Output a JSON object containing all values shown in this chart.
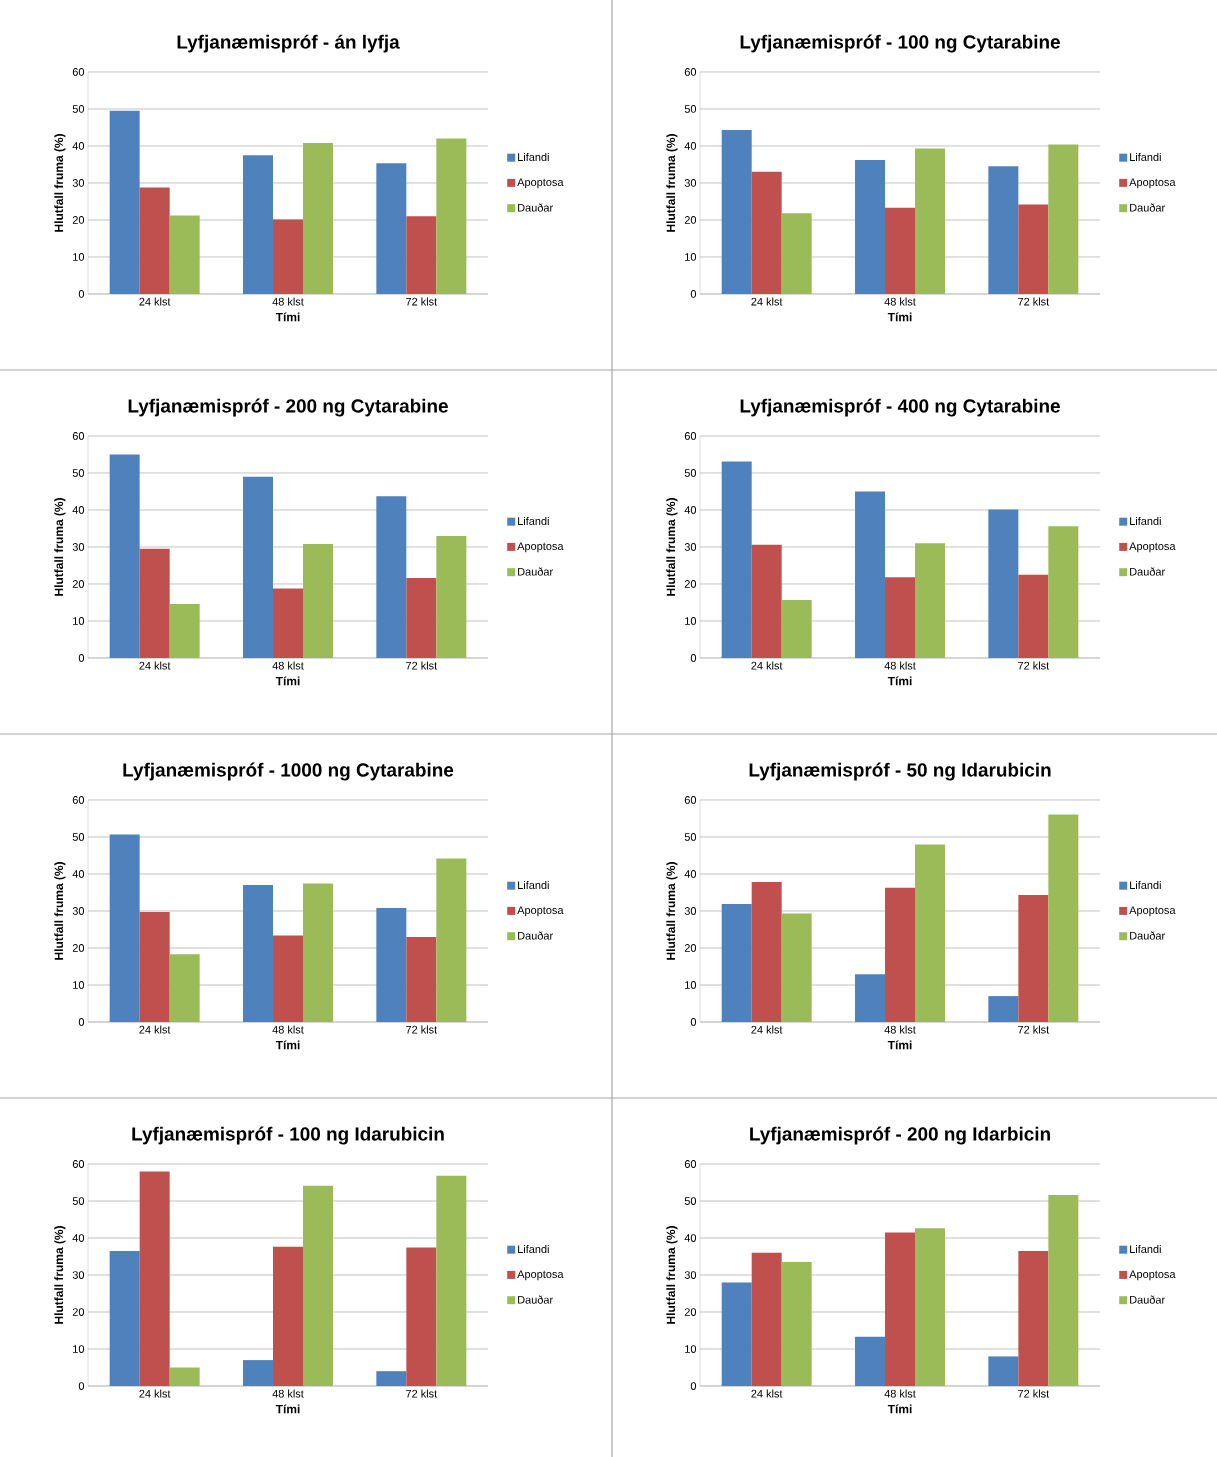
{
  "chart_data": [
    {
      "type": "bar",
      "title": "Lyfjanæmispróf - án lyfja",
      "xlabel": "Tími",
      "ylabel": "Hlutfall fruma (%)",
      "categories": [
        "24 klst",
        "48 klst",
        "72 klst"
      ],
      "ylim": [
        0,
        60
      ],
      "yticks": [
        0,
        10,
        20,
        30,
        40,
        50,
        60
      ],
      "grid": "y",
      "legend": "right",
      "series": [
        {
          "name": "Lifandi",
          "color": "#4f81bd",
          "values": [
            49.5,
            37.5,
            35.3
          ]
        },
        {
          "name": "Apoptosa",
          "color": "#c0504d",
          "values": [
            28.8,
            20.1,
            21.0
          ]
        },
        {
          "name": "Dauðar",
          "color": "#9bbb59",
          "values": [
            21.2,
            40.8,
            42.0
          ]
        }
      ]
    },
    {
      "type": "bar",
      "title": "Lyfjanæmispróf - 100 ng Cytarabine",
      "xlabel": "Tími",
      "ylabel": "Hlutfall fruma (%)",
      "categories": [
        "24 klst",
        "48 klst",
        "72 klst"
      ],
      "ylim": [
        0,
        60
      ],
      "yticks": [
        0,
        10,
        20,
        30,
        40,
        50,
        60
      ],
      "grid": "y",
      "legend": "right",
      "series": [
        {
          "name": "Lifandi",
          "color": "#4f81bd",
          "values": [
            44.3,
            36.2,
            34.5
          ]
        },
        {
          "name": "Apoptosa",
          "color": "#c0504d",
          "values": [
            33.0,
            23.3,
            24.2
          ]
        },
        {
          "name": "Dauðar",
          "color": "#9bbb59",
          "values": [
            21.8,
            39.3,
            40.4
          ]
        }
      ]
    },
    {
      "type": "bar",
      "title": "Lyfjanæmispróf - 200 ng Cytarabine",
      "xlabel": "Tími",
      "ylabel": "Hlutfall fruma (%)",
      "categories": [
        "24 klst",
        "48 klst",
        "72 klst"
      ],
      "ylim": [
        0,
        60
      ],
      "yticks": [
        0,
        10,
        20,
        30,
        40,
        50,
        60
      ],
      "grid": "y",
      "legend": "right",
      "series": [
        {
          "name": "Lifandi",
          "color": "#4f81bd",
          "values": [
            55.0,
            49.0,
            43.7
          ]
        },
        {
          "name": "Apoptosa",
          "color": "#c0504d",
          "values": [
            29.5,
            18.8,
            21.6
          ]
        },
        {
          "name": "Dauðar",
          "color": "#9bbb59",
          "values": [
            14.6,
            30.8,
            33.0
          ]
        }
      ]
    },
    {
      "type": "bar",
      "title": "Lyfjanæmispróf - 400 ng Cytarabine",
      "xlabel": "Tími",
      "ylabel": "Hlutfall fruma (%)",
      "categories": [
        "24 klst",
        "48 klst",
        "72 klst"
      ],
      "ylim": [
        0,
        60
      ],
      "yticks": [
        0,
        10,
        20,
        30,
        40,
        50,
        60
      ],
      "grid": "y",
      "legend": "right",
      "series": [
        {
          "name": "Lifandi",
          "color": "#4f81bd",
          "values": [
            53.1,
            45.0,
            40.1
          ]
        },
        {
          "name": "Apoptosa",
          "color": "#c0504d",
          "values": [
            30.6,
            21.8,
            22.5
          ]
        },
        {
          "name": "Dauðar",
          "color": "#9bbb59",
          "values": [
            15.7,
            31.0,
            35.6
          ]
        }
      ]
    },
    {
      "type": "bar",
      "title": "Lyfjanæmispróf - 1000 ng Cytarabine",
      "xlabel": "Tími",
      "ylabel": "Hlutfall fruma (%)",
      "categories": [
        "24 klst",
        "48 klst",
        "72 klst"
      ],
      "ylim": [
        0,
        60
      ],
      "yticks": [
        0,
        10,
        20,
        30,
        40,
        50,
        60
      ],
      "grid": "y",
      "legend": "right",
      "series": [
        {
          "name": "Lifandi",
          "color": "#4f81bd",
          "values": [
            50.7,
            37.0,
            30.8
          ]
        },
        {
          "name": "Apoptosa",
          "color": "#c0504d",
          "values": [
            29.7,
            23.4,
            23.0
          ]
        },
        {
          "name": "Dauðar",
          "color": "#9bbb59",
          "values": [
            18.3,
            37.4,
            44.2
          ]
        }
      ]
    },
    {
      "type": "bar",
      "title": "Lyfjanæmispróf - 50 ng Idarubicin",
      "xlabel": "Tími",
      "ylabel": "Hlutfall fruma (%)",
      "categories": [
        "24 klst",
        "48 klst",
        "72 klst"
      ],
      "ylim": [
        0,
        60
      ],
      "yticks": [
        0,
        10,
        20,
        30,
        40,
        50,
        60
      ],
      "grid": "y",
      "legend": "right",
      "series": [
        {
          "name": "Lifandi",
          "color": "#4f81bd",
          "values": [
            31.9,
            12.9,
            7.0
          ]
        },
        {
          "name": "Apoptosa",
          "color": "#c0504d",
          "values": [
            37.8,
            36.3,
            34.3
          ]
        },
        {
          "name": "Dauðar",
          "color": "#9bbb59",
          "values": [
            29.3,
            48.0,
            56.1
          ]
        }
      ]
    },
    {
      "type": "bar",
      "title": "Lyfjanæmispróf - 100 ng Idarubicin",
      "xlabel": "Tími",
      "ylabel": "Hlutfall fruma (%)",
      "categories": [
        "24 klst",
        "48 klst",
        "72 klst"
      ],
      "ylim": [
        0,
        60
      ],
      "yticks": [
        0,
        10,
        20,
        30,
        40,
        50,
        60
      ],
      "grid": "y",
      "legend": "right",
      "series": [
        {
          "name": "Lifandi",
          "color": "#4f81bd",
          "values": [
            36.5,
            7.0,
            4.0
          ]
        },
        {
          "name": "Apoptosa",
          "color": "#c0504d",
          "values": [
            58.0,
            37.6,
            37.4
          ]
        },
        {
          "name": "Dauðar",
          "color": "#9bbb59",
          "values": [
            5.0,
            54.1,
            56.8
          ]
        }
      ]
    },
    {
      "type": "bar",
      "title": "Lyfjanæmispróf - 200 ng Idarbicin",
      "xlabel": "Tími",
      "ylabel": "Hlutfall fruma (%)",
      "categories": [
        "24 klst",
        "48 klst",
        "72 klst"
      ],
      "ylim": [
        0,
        60
      ],
      "yticks": [
        0,
        10,
        20,
        30,
        40,
        50,
        60
      ],
      "grid": "y",
      "legend": "right",
      "series": [
        {
          "name": "Lifandi",
          "color": "#4f81bd",
          "values": [
            28.0,
            13.3,
            8.0
          ]
        },
        {
          "name": "Apoptosa",
          "color": "#c0504d",
          "values": [
            36.0,
            41.5,
            36.5
          ]
        },
        {
          "name": "Dauðar",
          "color": "#9bbb59",
          "values": [
            33.5,
            42.6,
            51.6
          ]
        }
      ]
    }
  ]
}
